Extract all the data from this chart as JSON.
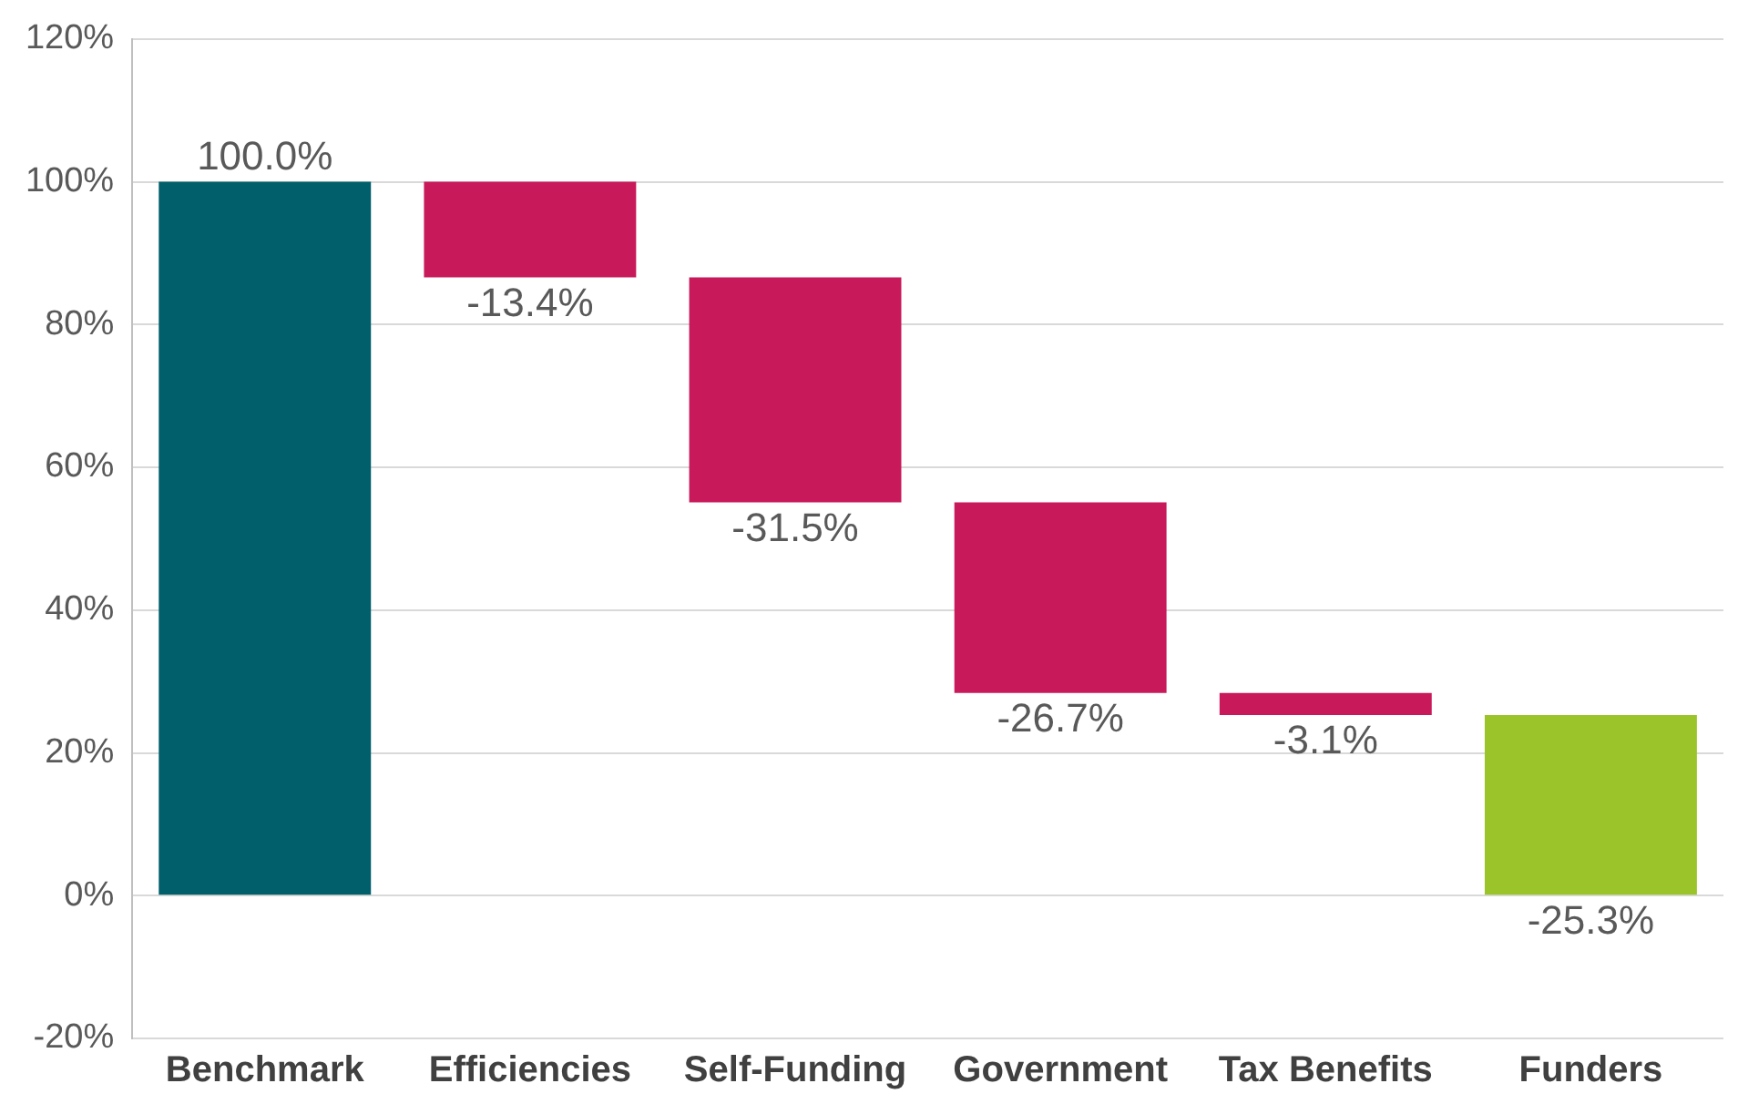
{
  "chart_data": {
    "type": "bar",
    "categories": [
      "Benchmark",
      "Efficiencies",
      "Self-Funding",
      "Government",
      "Tax Benefits",
      "Funders"
    ],
    "values": [
      100,
      -13.4,
      -31.5,
      -26.7,
      -3.1,
      -25.3
    ],
    "base": [
      0,
      100,
      86.6,
      55.1,
      28.4,
      25.3
    ],
    "colors": [
      "#005f6b",
      "#c8195a",
      "#c8195a",
      "#c8195a",
      "#c8195a",
      "#9bc42a"
    ],
    "value_labels": [
      "100.0%",
      "-13.4%",
      "-31.5%",
      "-26.7%",
      "-3.1%",
      "-25.3%"
    ],
    "ylim": [
      -20,
      120
    ],
    "yticks": [
      {
        "value": -20,
        "label": "-20%"
      },
      {
        "value": 0,
        "label": "0%"
      },
      {
        "value": 20,
        "label": "20%"
      },
      {
        "value": 40,
        "label": "40%"
      },
      {
        "value": 60,
        "label": "60%"
      },
      {
        "value": 80,
        "label": "80%"
      },
      {
        "value": 100,
        "label": "100%"
      },
      {
        "value": 120,
        "label": "120%"
      }
    ],
    "grid": "y",
    "legend": false
  }
}
